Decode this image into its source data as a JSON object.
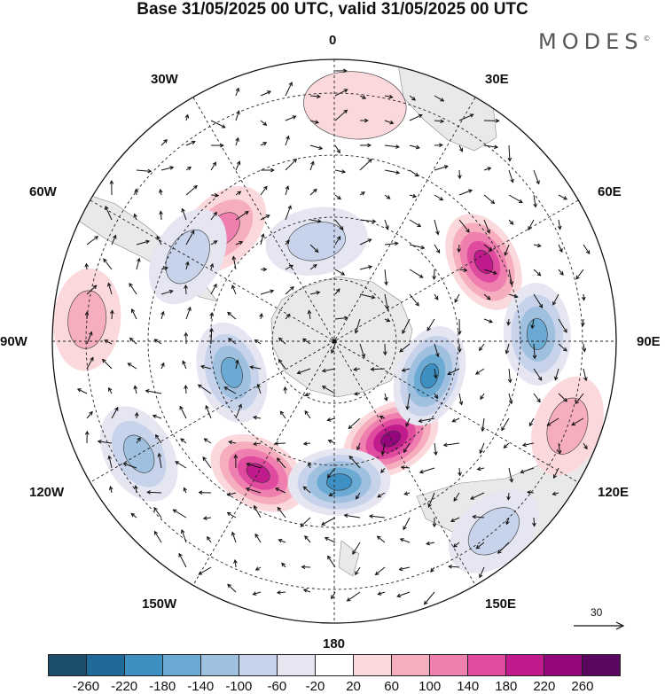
{
  "title": "Base 31/05/2025 00 UTC, valid 31/05/2025 00 UTC",
  "brand": "MODES",
  "brand_mark": "©",
  "longitude_labels": {
    "lon_0": "0",
    "lon_30e": "30E",
    "lon_60e": "60E",
    "lon_90e": "90E",
    "lon_120e": "120E",
    "lon_150e": "150E",
    "lon_180": "180",
    "lon_150w": "150W",
    "lon_120w": "120W",
    "lon_90w": "90W",
    "lon_60w": "60W",
    "lon_30w": "30W"
  },
  "vector_scale_label": "30",
  "colorbar": {
    "tick_labels": [
      "-260",
      "-220",
      "-180",
      "-140",
      "-100",
      "-60",
      "-20",
      "20",
      "60",
      "100",
      "140",
      "180",
      "220",
      "260"
    ],
    "colors": [
      "#1d4e6e",
      "#1f6a99",
      "#3e8fc2",
      "#6aaad3",
      "#a0c0e0",
      "#c7d3ea",
      "#e6e6f3",
      "#ffffff",
      "#fbd8dc",
      "#f6aebf",
      "#ef7fae",
      "#e04ba0",
      "#c01a8c",
      "#93067c",
      "#5a075f"
    ]
  },
  "map": {
    "projection": "south-polar-stereographic",
    "anomalies": [
      {
        "lon": 62,
        "colat": 30,
        "value": 180
      },
      {
        "lon": 150,
        "colat": 20,
        "value": 230
      },
      {
        "lon": -150,
        "colat": 27,
        "value": 190
      },
      {
        "lon": -45,
        "colat": 28,
        "value": 100
      },
      {
        "lon": -85,
        "colat": 44,
        "value": 70
      },
      {
        "lon": 110,
        "colat": 44,
        "value": 60
      },
      {
        "lon": 5,
        "colat": 42,
        "value": 40
      },
      {
        "lon": 178,
        "colat": 25,
        "value": -190
      },
      {
        "lon": 110,
        "colat": 18,
        "value": -180
      },
      {
        "lon": 88,
        "colat": 36,
        "value": -160
      },
      {
        "lon": -107,
        "colat": 19,
        "value": -170
      },
      {
        "lon": -120,
        "colat": 40,
        "value": -110
      },
      {
        "lon": 140,
        "colat": 44,
        "value": -90
      },
      {
        "lon": -10,
        "colat": 18,
        "value": -60
      },
      {
        "lon": -60,
        "colat": 30,
        "value": -80
      }
    ]
  }
}
